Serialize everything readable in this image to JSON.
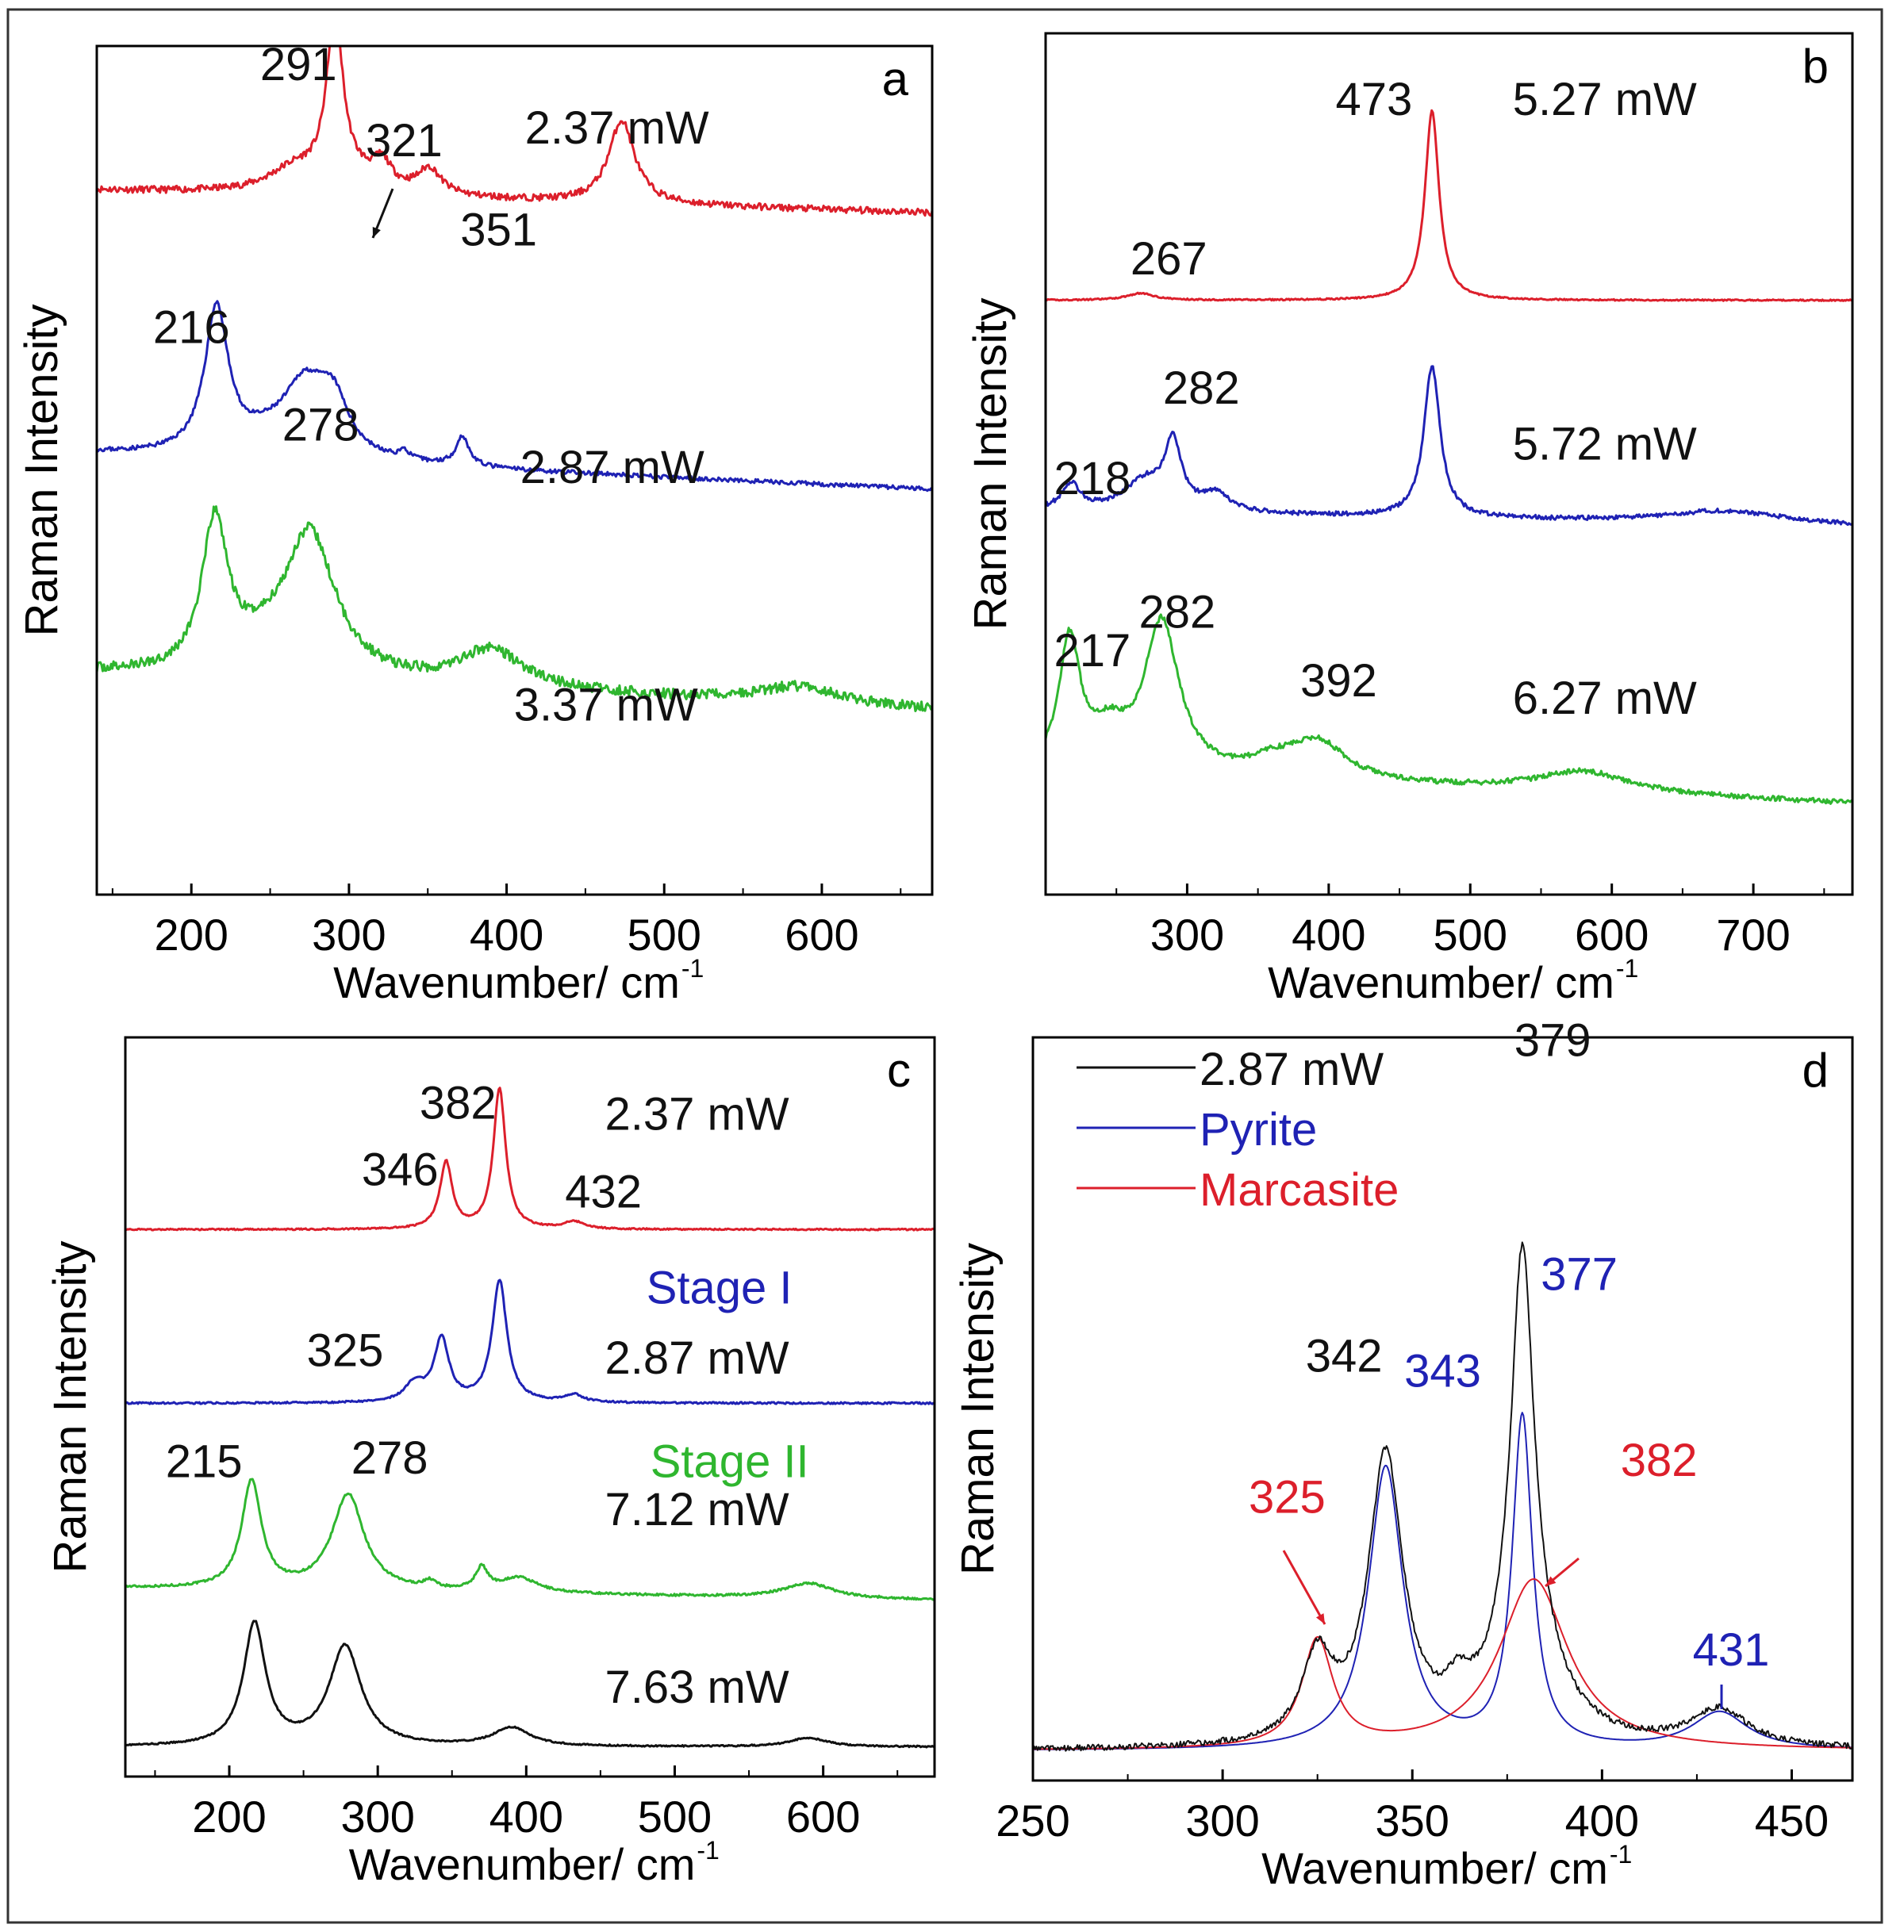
{
  "colors": {
    "red": "#dc1f2b",
    "blue": "#1f22b4",
    "green": "#2fb62f",
    "black": "#111111",
    "axis": "#000000"
  },
  "chart_data": [
    {
      "panel": "a",
      "type": "line",
      "xlabel": "Wavenumber/ cm",
      "xlabel_sup": "-1",
      "ylabel": "Raman Intensity",
      "xlim": [
        140,
        670
      ],
      "ylim": [
        0,
        10
      ],
      "xticks": [
        200,
        300,
        400,
        500,
        600
      ],
      "series": [
        {
          "name": "2.37 mW",
          "color": "red",
          "baseline": 8.3,
          "slope": -0.0005,
          "noise": 0.04,
          "seed": 11,
          "peaks": [
            [
              291,
              1.95,
              6
            ],
            [
              321,
              0.28,
              7
            ],
            [
              351,
              0.3,
              9
            ],
            [
              473,
              0.98,
              10
            ],
            [
              265,
              0.25,
              20
            ],
            [
              300,
              0.2,
              25
            ]
          ]
        },
        {
          "name": "2.87 mW",
          "color": "blue",
          "baseline": 5.2,
          "slope": -0.0008,
          "noise": 0.025,
          "seed": 23,
          "peaks": [
            [
              216,
              1.7,
              9
            ],
            [
              272,
              0.75,
              16
            ],
            [
              290,
              0.6,
              12
            ],
            [
              372,
              0.35,
              5
            ],
            [
              335,
              0.1,
              4
            ],
            [
              250,
              0.2,
              25
            ]
          ]
        },
        {
          "name": "3.37 mW",
          "color": "green",
          "baseline": 2.6,
          "slope": -0.0008,
          "noise": 0.06,
          "seed": 37,
          "peaks": [
            [
              215,
              1.75,
              10
            ],
            [
              275,
              1.7,
              20
            ],
            [
              390,
              0.45,
              25
            ],
            [
              585,
              0.2,
              30
            ],
            [
              245,
              0.2,
              20
            ]
          ]
        }
      ],
      "annotations": [
        {
          "text": "291",
          "color": "black",
          "x": 268,
          "y": 9.6
        },
        {
          "text": "321",
          "color": "black",
          "x": 335,
          "y": 8.7
        },
        {
          "text": "351",
          "color": "black",
          "x": 395,
          "y": 7.65
        },
        {
          "text": "216",
          "color": "black",
          "x": 200,
          "y": 6.5
        },
        {
          "text": "278",
          "color": "black",
          "x": 282,
          "y": 5.35
        },
        {
          "text": "2.37 mW",
          "color": "black",
          "x": 470,
          "y": 8.85
        },
        {
          "text": "2.87 mW",
          "color": "black",
          "x": 467,
          "y": 4.85
        },
        {
          "text": "3.37 mW",
          "color": "black",
          "x": 463,
          "y": 2.05
        }
      ],
      "panel_letter": "a"
    },
    {
      "panel": "b",
      "type": "line",
      "xlabel": "Wavenumber/ cm",
      "xlabel_sup": "-1",
      "ylabel": "Raman Intensity",
      "xlim": [
        200,
        770
      ],
      "ylim": [
        0,
        10
      ],
      "xticks": [
        300,
        400,
        500,
        600,
        700
      ],
      "series": [
        {
          "name": "5.27 mW",
          "color": "red",
          "baseline": 6.9,
          "slope": 0,
          "noise": 0.008,
          "seed": 41,
          "peaks": [
            [
              473,
              2.2,
              6
            ],
            [
              267,
              0.08,
              12
            ]
          ]
        },
        {
          "name": "5.72 mW",
          "color": "blue",
          "baseline": 4.45,
          "slope": -0.0003,
          "noise": 0.025,
          "seed": 53,
          "peaks": [
            [
              473,
              1.75,
              7
            ],
            [
              290,
              0.75,
              7
            ],
            [
              218,
              0.3,
              8
            ],
            [
              270,
              0.35,
              18
            ],
            [
              320,
              0.2,
              12
            ],
            [
              680,
              0.15,
              50
            ]
          ]
        },
        {
          "name": "6.27 mW",
          "color": "green",
          "baseline": 1.4,
          "slope": -0.0006,
          "noise": 0.03,
          "seed": 67,
          "peaks": [
            [
              217,
              1.5,
              9
            ],
            [
              282,
              1.75,
              15
            ],
            [
              245,
              0.4,
              15
            ],
            [
              392,
              0.45,
              25
            ],
            [
              580,
              0.25,
              40
            ],
            [
              360,
              0.15,
              20
            ]
          ]
        }
      ],
      "annotations": [
        {
          "text": "473",
          "color": "black",
          "x": 432,
          "y": 9.05
        },
        {
          "text": "267",
          "color": "black",
          "x": 287,
          "y": 7.2
        },
        {
          "text": "282",
          "color": "black",
          "x": 310,
          "y": 5.7
        },
        {
          "text": "218",
          "color": "black",
          "x": 233,
          "y": 4.65
        },
        {
          "text": "217",
          "color": "black",
          "x": 233,
          "y": 2.65
        },
        {
          "text": "282",
          "color": "black",
          "x": 293,
          "y": 3.1
        },
        {
          "text": "392",
          "color": "black",
          "x": 407,
          "y": 2.3
        },
        {
          "text": "5.27 mW",
          "color": "black",
          "x": 595,
          "y": 9.05
        },
        {
          "text": "5.72 mW",
          "color": "black",
          "x": 595,
          "y": 5.05
        },
        {
          "text": "6.27 mW",
          "color": "black",
          "x": 595,
          "y": 2.1
        }
      ],
      "panel_letter": "b"
    },
    {
      "panel": "c",
      "type": "line",
      "xlabel": "Wavenumber/ cm",
      "xlabel_sup": "-1",
      "ylabel": "Raman Intensity",
      "xlim": [
        130,
        675
      ],
      "ylim": [
        0,
        10
      ],
      "xticks": [
        200,
        300,
        400,
        500,
        600
      ],
      "series": [
        {
          "name": "2.37 mW",
          "color": "red",
          "baseline": 7.4,
          "slope": 0,
          "noise": 0.01,
          "seed": 71,
          "peaks": [
            [
              382,
              1.9,
              5
            ],
            [
              346,
              0.9,
              5
            ],
            [
              432,
              0.1,
              8
            ]
          ]
        },
        {
          "name": "2.87 mW",
          "color": "blue",
          "baseline": 5.05,
          "slope": 0,
          "noise": 0.012,
          "seed": 83,
          "peaks": [
            [
              382,
              1.65,
              6
            ],
            [
              343,
              0.85,
              6
            ],
            [
              325,
              0.25,
              8
            ],
            [
              432,
              0.1,
              8
            ]
          ]
        },
        {
          "name": "7.12 mW",
          "color": "green",
          "baseline": 2.55,
          "slope": -0.0003,
          "noise": 0.015,
          "seed": 97,
          "peaks": [
            [
              215,
              1.45,
              8
            ],
            [
              280,
              1.3,
              13
            ],
            [
              370,
              0.3,
              5
            ],
            [
              395,
              0.2,
              15
            ],
            [
              335,
              0.1,
              5
            ],
            [
              590,
              0.2,
              20
            ]
          ]
        },
        {
          "name": "7.63 mW",
          "color": "black",
          "baseline": 0.4,
          "slope": 0,
          "noise": 0.01,
          "seed": 101,
          "peaks": [
            [
              217,
              1.65,
              9
            ],
            [
              278,
              1.35,
              13
            ],
            [
              390,
              0.25,
              15
            ],
            [
              590,
              0.12,
              15
            ]
          ]
        }
      ],
      "annotations": [
        {
          "text": "382",
          "color": "black",
          "x": 354,
          "y": 8.9
        },
        {
          "text": "346",
          "color": "black",
          "x": 315,
          "y": 8.0
        },
        {
          "text": "432",
          "color": "black",
          "x": 452,
          "y": 7.7
        },
        {
          "text": "2.37 mW",
          "color": "black",
          "x": 515,
          "y": 8.75
        },
        {
          "text": "Stage I",
          "color": "blue",
          "x": 530,
          "y": 6.4
        },
        {
          "text": "325",
          "color": "black",
          "x": 278,
          "y": 5.55
        },
        {
          "text": "2.87 mW",
          "color": "black",
          "x": 515,
          "y": 5.45
        },
        {
          "text": "Stage II",
          "color": "green",
          "x": 537,
          "y": 4.05
        },
        {
          "text": "215",
          "color": "black",
          "x": 183,
          "y": 4.05
        },
        {
          "text": "278",
          "color": "black",
          "x": 308,
          "y": 4.1
        },
        {
          "text": "7.12 mW",
          "color": "black",
          "x": 515,
          "y": 3.4
        },
        {
          "text": "7.63 mW",
          "color": "black",
          "x": 515,
          "y": 1.0
        }
      ],
      "panel_letter": "c"
    },
    {
      "panel": "d",
      "type": "line",
      "xlabel": "Wavenumber/ cm",
      "xlabel_sup": "-1",
      "ylabel": "Raman Intensity",
      "xlim": [
        250,
        466
      ],
      "ylim": [
        0,
        10
      ],
      "xticks": [
        250,
        300,
        350,
        400,
        450
      ],
      "legend": [
        {
          "label": "2.87 mW",
          "color": "black"
        },
        {
          "label": "Pyrite",
          "color": "blue"
        },
        {
          "label": "Marcasite",
          "color": "red"
        }
      ],
      "series": [
        {
          "name": "Pyrite fit",
          "color": "blue",
          "baseline": 0.4,
          "slope": 0,
          "noise": 0,
          "seed": 0,
          "width": 2,
          "peaks": [
            [
              343,
              3.8,
              5.5
            ],
            [
              379,
              4.45,
              3.2
            ],
            [
              431,
              0.5,
              9
            ]
          ]
        },
        {
          "name": "Marcasite fit",
          "color": "red",
          "baseline": 0.4,
          "slope": 0,
          "noise": 0,
          "seed": 0,
          "width": 2,
          "peaks": [
            [
              325,
              1.45,
              5
            ],
            [
              382,
              2.3,
              11
            ]
          ]
        },
        {
          "name": "2.87 mW",
          "color": "black",
          "baseline": 0.4,
          "slope": 0,
          "noise": 0.04,
          "seed": 113,
          "width": 2,
          "peaks": [
            [
              343,
              3.85,
              5.5
            ],
            [
              379,
              5.4,
              3.6
            ],
            [
              325,
              1.1,
              5
            ],
            [
              380,
              1.3,
              10
            ],
            [
              431,
              0.5,
              9
            ],
            [
              362,
              0.4,
              4
            ]
          ]
        }
      ],
      "annotations": [
        {
          "text": "379",
          "color": "black",
          "x": 387,
          "y": 9.75
        },
        {
          "text": "377",
          "color": "blue",
          "x": 394,
          "y": 6.6
        },
        {
          "text": "342",
          "color": "black",
          "x": 332,
          "y": 5.5
        },
        {
          "text": "343",
          "color": "blue",
          "x": 358,
          "y": 5.3
        },
        {
          "text": "325",
          "color": "red",
          "x": 317,
          "y": 3.6
        },
        {
          "text": "382",
          "color": "red",
          "x": 415,
          "y": 4.1
        },
        {
          "text": "431",
          "color": "blue",
          "x": 434,
          "y": 1.55
        }
      ],
      "panel_letter": "d"
    }
  ]
}
